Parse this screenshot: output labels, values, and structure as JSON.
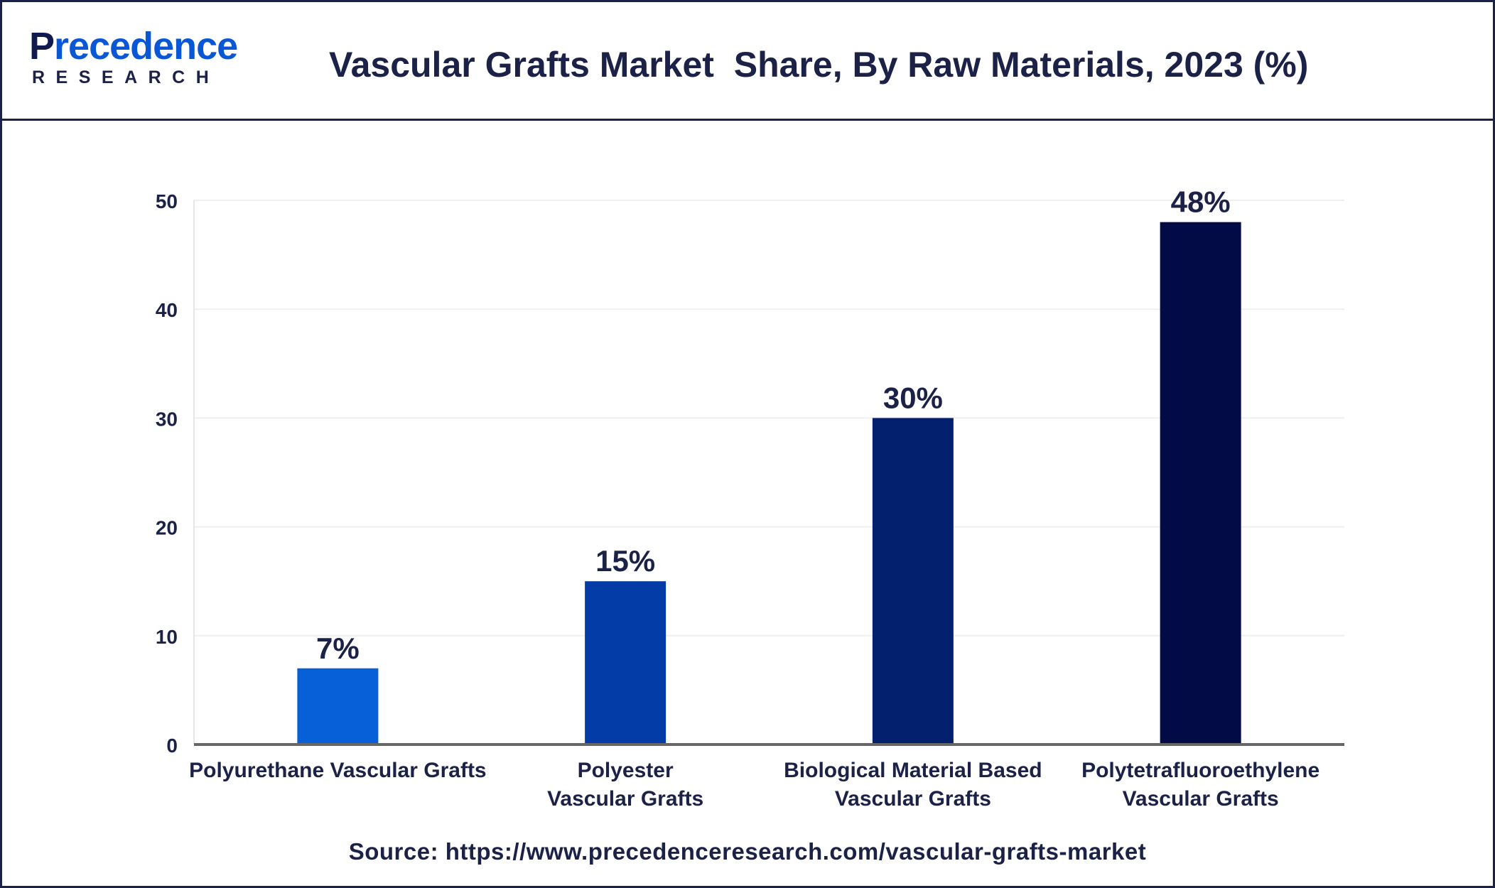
{
  "header": {
    "logo_main_first": "P",
    "logo_main_rest": "recedence",
    "logo_sub": "RESEARCH",
    "title": "Vascular Grafts Market  Share, By Raw Materials, 2023 (%)"
  },
  "chart_data": {
    "type": "bar",
    "title": "Vascular Grafts Market  Share, By Raw Materials, 2023 (%)",
    "xlabel": "",
    "ylabel": "",
    "ylim": [
      0,
      50
    ],
    "yticks": [
      0,
      10,
      20,
      30,
      40,
      50
    ],
    "grid": true,
    "legend": "none",
    "categories": [
      [
        "Polyurethane Vascular Grafts"
      ],
      [
        "Polyester",
        "Vascular Grafts"
      ],
      [
        "Biological Material Based",
        "Vascular Grafts"
      ],
      [
        "Polytetrafluoroethylene",
        "Vascular Grafts"
      ]
    ],
    "values": [
      7,
      15,
      30,
      48
    ],
    "data_labels": [
      "7%",
      "15%",
      "30%",
      "48%"
    ],
    "colors": [
      "#0760d8",
      "#033ca6",
      "#03206f",
      "#020b46"
    ]
  },
  "footer": {
    "source": "Source: https://www.precedenceresearch.com/vascular-grafts-market"
  }
}
